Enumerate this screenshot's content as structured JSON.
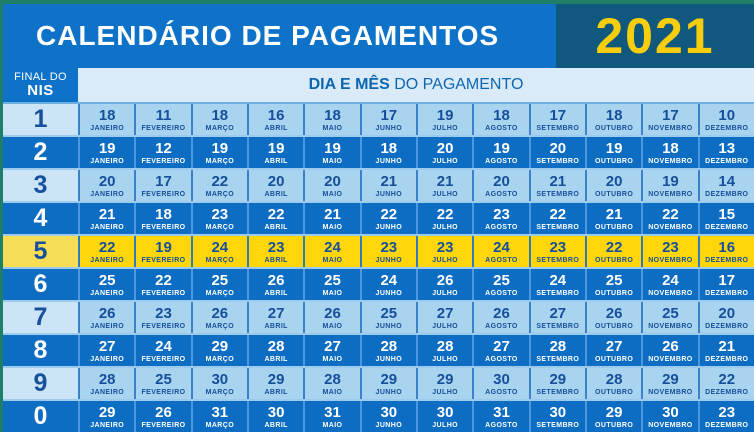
{
  "header": {
    "title": "CALENDÁRIO DE PAGAMENTOS",
    "year": "2021"
  },
  "subheader": {
    "final_do": "FINAL DO",
    "nis": "NIS",
    "dia_e_mes": "DIA E MÊS",
    "do_pagamento": " DO PAGAMENTO"
  },
  "months": [
    "JANEIRO",
    "FEVEREIRO",
    "MARÇO",
    "ABRIL",
    "MAIO",
    "JUNHO",
    "JULHO",
    "AGOSTO",
    "SETEMBRO",
    "OUTUBRO",
    "NOVEMBRO",
    "DEZEMBRO"
  ],
  "rows": [
    {
      "digit": "1",
      "style": "light",
      "days": [
        "18",
        "11",
        "18",
        "16",
        "18",
        "17",
        "19",
        "18",
        "17",
        "18",
        "17",
        "10"
      ]
    },
    {
      "digit": "2",
      "style": "dark",
      "days": [
        "19",
        "12",
        "19",
        "19",
        "19",
        "18",
        "20",
        "19",
        "20",
        "19",
        "18",
        "13"
      ]
    },
    {
      "digit": "3",
      "style": "light",
      "days": [
        "20",
        "17",
        "22",
        "20",
        "20",
        "21",
        "21",
        "20",
        "21",
        "20",
        "19",
        "14"
      ]
    },
    {
      "digit": "4",
      "style": "dark",
      "days": [
        "21",
        "18",
        "23",
        "22",
        "21",
        "22",
        "22",
        "23",
        "22",
        "21",
        "22",
        "15"
      ]
    },
    {
      "digit": "5",
      "style": "highlight",
      "days": [
        "22",
        "19",
        "24",
        "23",
        "24",
        "23",
        "23",
        "24",
        "23",
        "22",
        "23",
        "16"
      ]
    },
    {
      "digit": "6",
      "style": "dark",
      "days": [
        "25",
        "22",
        "25",
        "26",
        "25",
        "24",
        "26",
        "25",
        "24",
        "25",
        "24",
        "17"
      ]
    },
    {
      "digit": "7",
      "style": "light",
      "days": [
        "26",
        "23",
        "26",
        "27",
        "26",
        "25",
        "27",
        "26",
        "27",
        "26",
        "25",
        "20"
      ]
    },
    {
      "digit": "8",
      "style": "dark",
      "days": [
        "27",
        "24",
        "29",
        "28",
        "27",
        "28",
        "28",
        "27",
        "28",
        "27",
        "26",
        "21"
      ]
    },
    {
      "digit": "9",
      "style": "light",
      "days": [
        "28",
        "25",
        "30",
        "29",
        "28",
        "29",
        "29",
        "30",
        "29",
        "28",
        "29",
        "22"
      ]
    },
    {
      "digit": "0",
      "style": "dark",
      "days": [
        "29",
        "26",
        "31",
        "30",
        "31",
        "30",
        "30",
        "31",
        "30",
        "29",
        "30",
        "23"
      ]
    }
  ],
  "colors": {
    "border_green": "#1F7E68",
    "header_blue": "#0D72C8",
    "year_panel": "#10587E",
    "year_yellow": "#F7CE0D",
    "subheader_bar": "#D9EBF8",
    "subheader_text": "#0E66B0",
    "row_light": "#A9D4F0",
    "row_dark": "#0D6DC3",
    "row_highlight": "#FFD60A",
    "text_dark_blue": "#164F9A"
  }
}
